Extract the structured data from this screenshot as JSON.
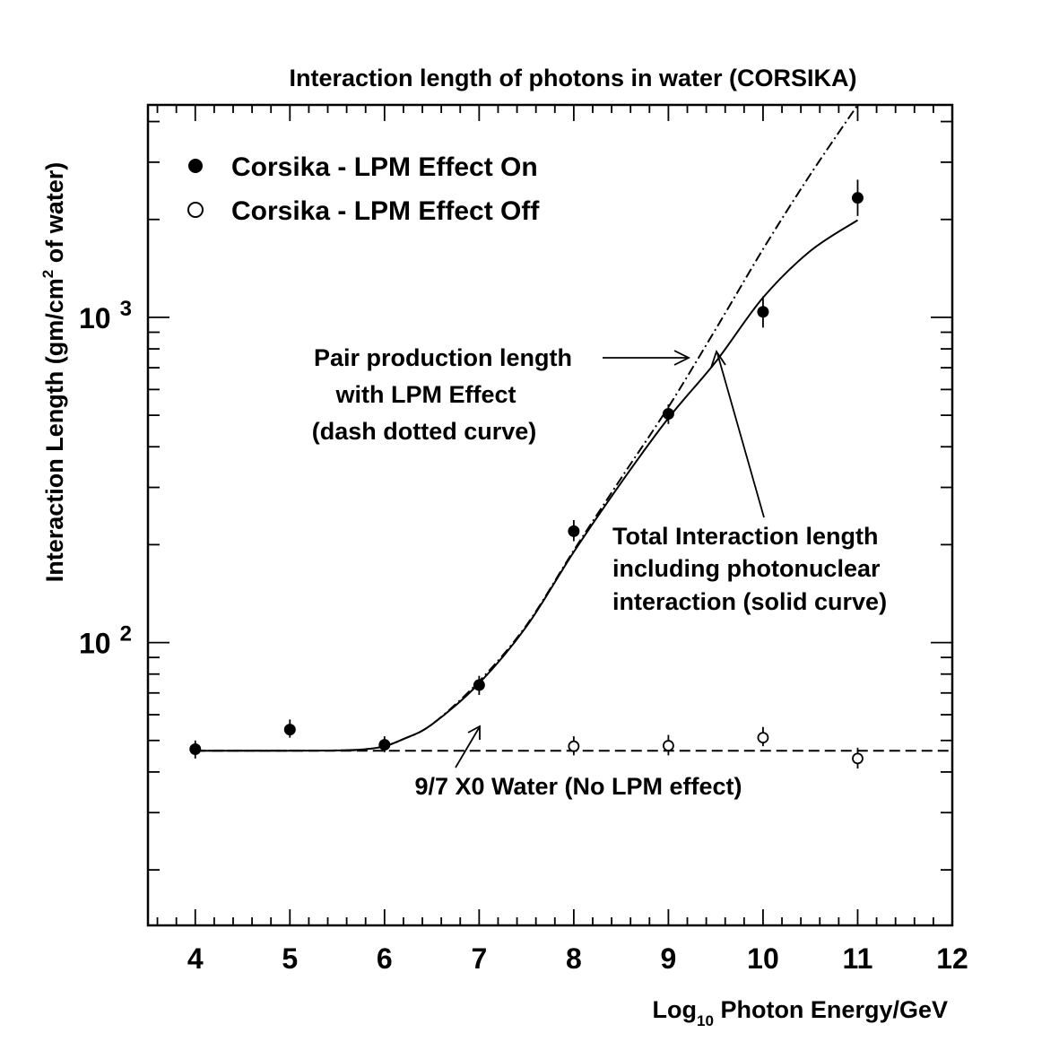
{
  "chart_data": {
    "type": "scatter",
    "title": "Interaction length of photons in water (CORSIKA)",
    "xlabel": {
      "prefix": "Log",
      "sub": "10",
      "suffix": " Photon Energy/GeV"
    },
    "ylabel": {
      "prefix": "Interaction Length (gm/cm",
      "sup": "2",
      "suffix": " of water)"
    },
    "x_scale": "linear",
    "y_scale": "log",
    "xlim": [
      3.5,
      12
    ],
    "ylim": [
      13.5,
      4500
    ],
    "x_ticks": [
      "4",
      "5",
      "6",
      "7",
      "8",
      "9",
      "10",
      "11",
      "12"
    ],
    "y_tick_labels": [
      {
        "value": 100,
        "base": "10",
        "exp": "2"
      },
      {
        "value": 1000,
        "base": "10",
        "exp": "3"
      }
    ],
    "legend": {
      "placement": "top-left",
      "entries": [
        {
          "label": "Corsika - LPM Effect On",
          "marker": "filled-circle"
        },
        {
          "label": "Corsika - LPM Effect Off",
          "marker": "open-circle"
        }
      ]
    },
    "series": [
      {
        "name": "Corsika - LPM Effect On",
        "marker": "filled-circle",
        "points": [
          {
            "x": 4,
            "y": 47,
            "lo": 44,
            "hi": 50
          },
          {
            "x": 5,
            "y": 54,
            "lo": 51,
            "hi": 58
          },
          {
            "x": 6,
            "y": 48.5,
            "lo": 46,
            "hi": 51.5
          },
          {
            "x": 7,
            "y": 74,
            "lo": 69,
            "hi": 79
          },
          {
            "x": 8,
            "y": 220,
            "lo": 205,
            "hi": 238
          },
          {
            "x": 9,
            "y": 505,
            "lo": 470,
            "hi": 540
          },
          {
            "x": 10,
            "y": 1040,
            "lo": 930,
            "hi": 1160
          },
          {
            "x": 11,
            "y": 2330,
            "lo": 2050,
            "hi": 2650
          }
        ]
      },
      {
        "name": "Corsika - LPM Effect Off",
        "marker": "open-circle",
        "points": [
          {
            "x": 8,
            "y": 48,
            "lo": 45,
            "hi": 51.5
          },
          {
            "x": 9,
            "y": 48.2,
            "lo": 45,
            "hi": 52
          },
          {
            "x": 10,
            "y": 51,
            "lo": 48,
            "hi": 55
          },
          {
            "x": 11,
            "y": 44,
            "lo": 41,
            "hi": 47.5
          }
        ]
      }
    ],
    "curves": {
      "total_solid": [
        [
          4,
          46.5
        ],
        [
          5,
          46.5
        ],
        [
          5.5,
          46.6
        ],
        [
          5.8,
          47
        ],
        [
          6,
          48
        ],
        [
          6.2,
          50.5
        ],
        [
          6.5,
          56
        ],
        [
          7,
          75
        ],
        [
          7.5,
          112
        ],
        [
          8,
          190
        ],
        [
          8.5,
          310
        ],
        [
          9,
          490
        ],
        [
          9.5,
          730
        ],
        [
          10,
          1150
        ],
        [
          10.5,
          1600
        ],
        [
          11,
          1990
        ]
      ],
      "pair_dashdot": [
        [
          4,
          46.5
        ],
        [
          5.5,
          46.6
        ],
        [
          5.8,
          47
        ],
        [
          6,
          48
        ],
        [
          6.2,
          50.5
        ],
        [
          6.5,
          56
        ],
        [
          7,
          76
        ],
        [
          7.5,
          113
        ],
        [
          8,
          192
        ],
        [
          8.5,
          320
        ],
        [
          9,
          530
        ],
        [
          9.5,
          920
        ],
        [
          10,
          1620
        ],
        [
          10.5,
          2750
        ],
        [
          11,
          4500
        ]
      ],
      "xo_dashed": 46.5
    },
    "annotations": {
      "pair": [
        "Pair production length",
        "with LPM Effect",
        "(dash dotted curve)"
      ],
      "total": [
        "Total Interaction length",
        "including photonuclear",
        "interaction (solid curve)"
      ],
      "xo": "9/7 X0 Water (No LPM effect)"
    }
  }
}
